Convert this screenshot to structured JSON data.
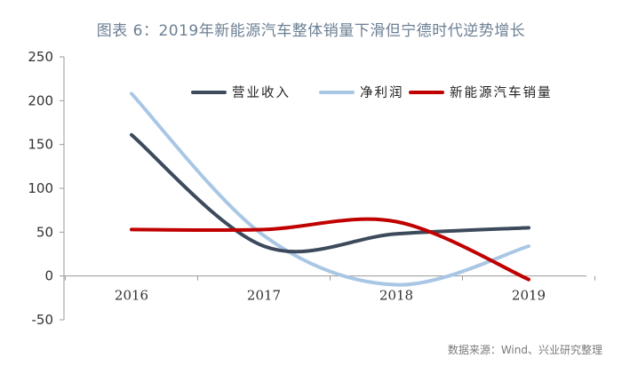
{
  "header": {
    "title": "图表 6：2019年新能源汽车整体销量下滑但宁德时代逆势增长"
  },
  "footer": {
    "source": "数据来源：Wind、兴业研究整理"
  },
  "chart_data": {
    "type": "line",
    "title": "图表 6：2019年新能源汽车整体销量下滑但宁德时代逆势增长",
    "xlabel": "",
    "ylabel": "",
    "categories": [
      "2016",
      "2017",
      "2018",
      "2019"
    ],
    "ylim": [
      -50,
      250
    ],
    "yticks": [
      -50,
      0,
      50,
      100,
      150,
      200,
      250
    ],
    "grid": false,
    "legend_position": "top",
    "smooth": true,
    "series": [
      {
        "name": "营业收入",
        "values": [
          161,
          34,
          48,
          55
        ],
        "color": "#3d4a5c"
      },
      {
        "name": "净利润",
        "values": [
          208,
          46,
          -10,
          34
        ],
        "color": "#a9c7e4"
      },
      {
        "name": "新能源汽车销量",
        "values": [
          53,
          53,
          62,
          -4
        ],
        "color": "#c00000"
      }
    ]
  }
}
